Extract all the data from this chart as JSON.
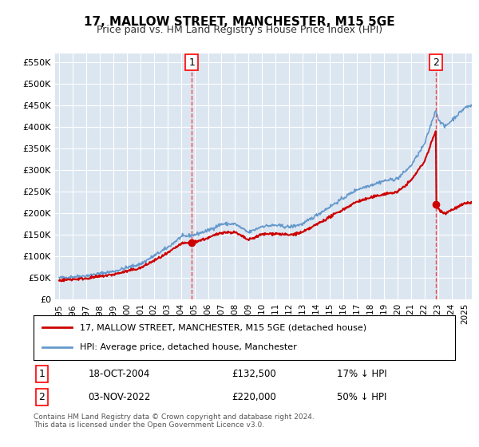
{
  "title": "17, MALLOW STREET, MANCHESTER, M15 5GE",
  "subtitle": "Price paid vs. HM Land Registry's House Price Index (HPI)",
  "ylabel_ticks": [
    "£0",
    "£50K",
    "£100K",
    "£150K",
    "£200K",
    "£250K",
    "£300K",
    "£350K",
    "£400K",
    "£450K",
    "£500K",
    "£550K"
  ],
  "ytick_values": [
    0,
    50000,
    100000,
    150000,
    200000,
    250000,
    300000,
    350000,
    400000,
    450000,
    500000,
    550000
  ],
  "ylim": [
    0,
    570000
  ],
  "xlim_start": 1995.0,
  "xlim_end": 2025.5,
  "hpi_line_color": "#6699cc",
  "price_line_color": "#cc0000",
  "sale1_date": 2004.8,
  "sale1_price": 132500,
  "sale2_date": 2022.84,
  "sale2_price": 220000,
  "legend_label_price": "17, MALLOW STREET, MANCHESTER, M15 5GE (detached house)",
  "legend_label_hpi": "HPI: Average price, detached house, Manchester",
  "annotation1_label": "1",
  "annotation1_date": "18-OCT-2004",
  "annotation1_price": "£132,500",
  "annotation1_hpi": "17% ↓ HPI",
  "annotation2_label": "2",
  "annotation2_date": "03-NOV-2022",
  "annotation2_price": "£220,000",
  "annotation2_hpi": "50% ↓ HPI",
  "footnote": "Contains HM Land Registry data © Crown copyright and database right 2024.\nThis data is licensed under the Open Government Licence v3.0.",
  "background_color": "#dce6f1",
  "plot_bg_color": "#dce6f1",
  "fig_bg_color": "#ffffff"
}
